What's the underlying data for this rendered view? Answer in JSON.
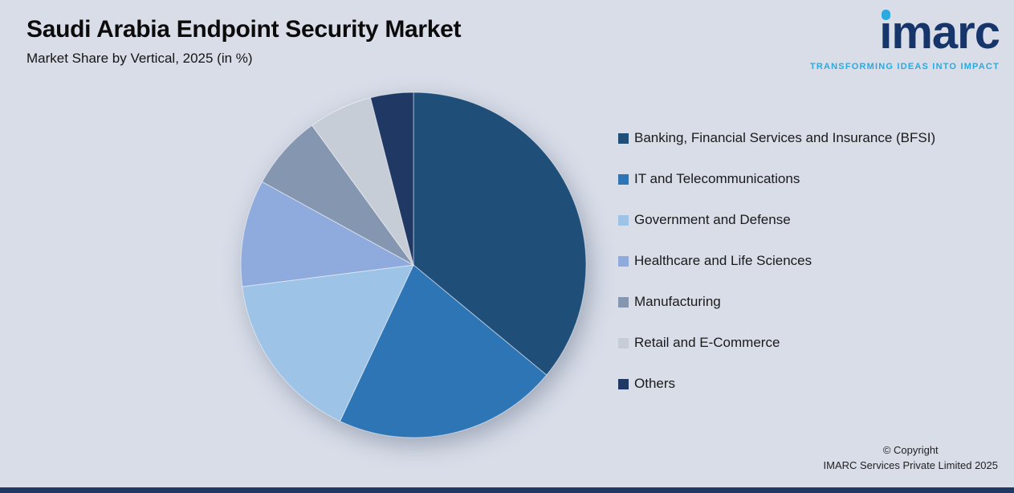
{
  "header": {
    "title": "Saudi Arabia Endpoint Security Market",
    "subtitle": "Market Share by Vertical, 2025 (in %)"
  },
  "logo": {
    "name": "imarc",
    "name_display": "ımarc",
    "tagline": "TRANSFORMING IDEAS INTO IMPACT",
    "brand_navy": "#16356B",
    "brand_cyan": "#29ABE2"
  },
  "chart_data": {
    "type": "pie",
    "title": "Saudi Arabia Endpoint Security Market",
    "subtitle": "Market Share by Vertical, 2025 (in %)",
    "categories": [
      "Banking, Financial Services and Insurance (BFSI)",
      "IT and Telecommunications",
      "Government and Defense",
      "Healthcare and Life Sciences",
      "Manufacturing",
      "Retail and E-Commerce",
      "Others"
    ],
    "values": [
      36,
      21,
      16,
      10,
      7,
      6,
      4
    ],
    "values_note": "estimated from slice angles; no data labels shown in chart",
    "colors": [
      "#1F4E79",
      "#2E75B6",
      "#9DC3E6",
      "#8FAADC",
      "#8496B0",
      "#C7CDD6",
      "#203864"
    ],
    "start_angle_deg": 0,
    "direction": "clockwise",
    "legend_position": "right",
    "background_color": "#D8DDE8"
  },
  "footer": {
    "copyright_line1": "© Copyright",
    "copyright_line2": "IMARC Services Private Limited 2025"
  }
}
